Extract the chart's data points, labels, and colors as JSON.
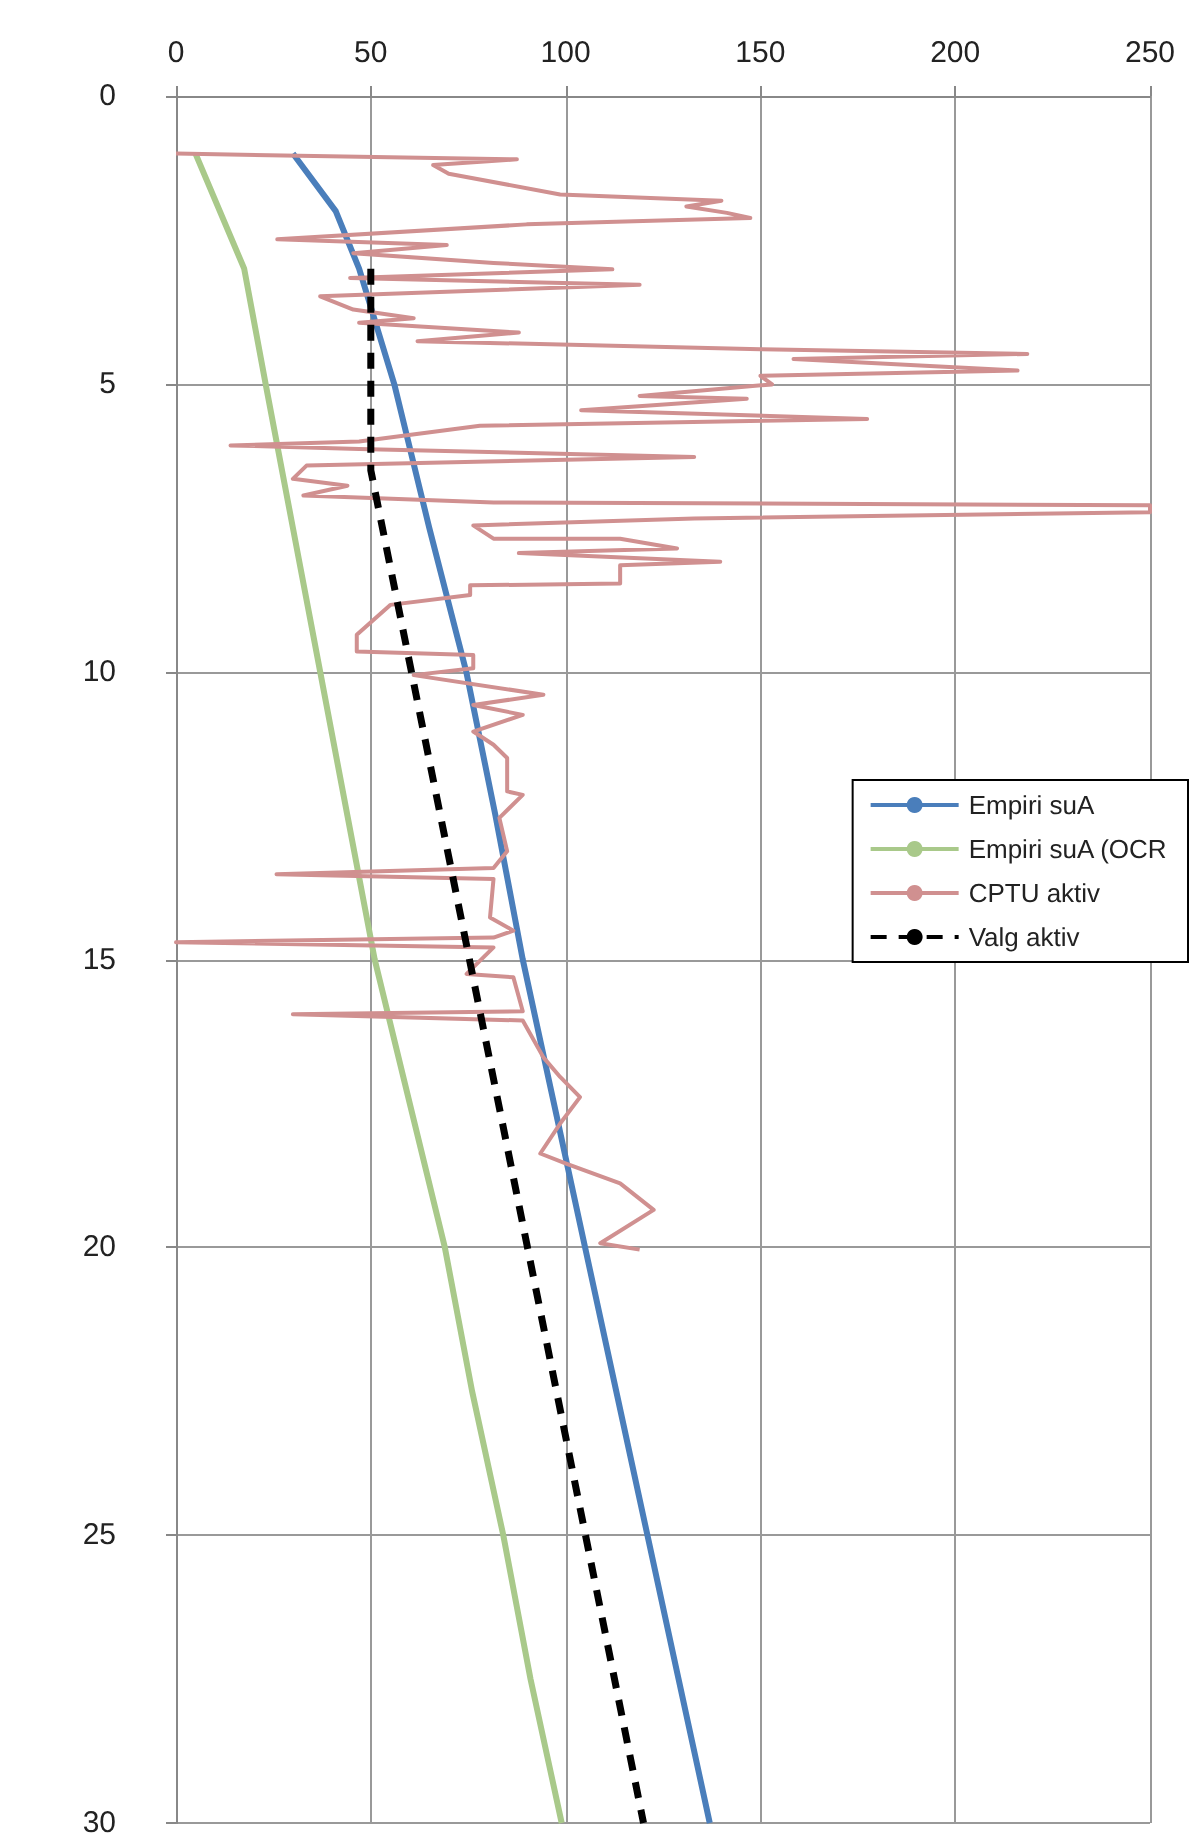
{
  "chart_data": {
    "type": "line",
    "xlim": [
      0,
      250
    ],
    "xticks": [
      0,
      50,
      100,
      150,
      200,
      250
    ],
    "ylim": [
      30,
      0
    ],
    "yticks": [
      0,
      5,
      10,
      15,
      20,
      25,
      30
    ],
    "grid": true,
    "legend": "right",
    "marker": "none",
    "series": [
      {
        "name": "Empiri suA",
        "color": "#4a7ebb",
        "x": [
          30,
          41,
          47,
          56,
          65,
          74.5,
          82,
          89,
          97,
          105,
          113,
          121,
          129,
          137
        ],
        "values": [
          1,
          2,
          3,
          5,
          7.5,
          10,
          12.5,
          15,
          17.5,
          20,
          22.5,
          25,
          27.5,
          30
        ]
      },
      {
        "name": "Empiri suA (OCR",
        "color": "#a9c98a",
        "x": [
          5,
          17.5,
          23,
          30,
          37,
          44,
          51,
          60,
          69,
          76,
          84,
          91,
          99
        ],
        "values": [
          1,
          3,
          5,
          7.5,
          10,
          12.5,
          15,
          17.5,
          20,
          22.5,
          25,
          27.5,
          30
        ]
      },
      {
        "name": "CPTU aktiv",
        "color": "#d09090",
        "x": [
          0,
          87.5,
          66,
          70,
          98.6,
          140,
          131,
          141.4,
          147.4,
          90,
          26,
          69.5,
          45.5,
          81.5,
          112,
          44.7,
          119,
          37,
          45.5,
          61,
          47,
          88,
          62,
          150,
          218.5,
          158.5,
          216,
          150,
          153,
          119,
          146.5,
          104,
          177.4,
          78,
          47,
          14,
          47,
          133,
          33.5,
          30,
          44,
          32.7,
          81.5,
          250,
          250,
          133,
          76.3,
          81.5,
          114,
          128.6,
          88,
          139.7,
          114,
          114,
          75.5,
          75.5,
          55,
          46.4,
          46.4,
          76.3,
          76.3,
          61,
          94.3,
          76.3,
          89,
          76.3,
          81.5,
          85,
          85,
          89,
          83,
          85,
          81.5,
          25.8,
          81.5,
          80.6,
          86.6,
          81.5,
          0,
          81.5,
          74.6,
          86.6,
          89,
          30,
          89,
          94.3,
          98.6,
          103.7,
          98.6,
          93.5,
          100.3,
          114,
          122.6,
          108.9,
          119
        ],
        "values": [
          1.0,
          1.1,
          1.2,
          1.35,
          1.71,
          1.82,
          1.92,
          2.03,
          2.12,
          2.23,
          2.49,
          2.59,
          2.73,
          2.9,
          3.01,
          3.16,
          3.28,
          3.48,
          3.71,
          3.86,
          3.94,
          4.11,
          4.26,
          4.4,
          4.48,
          4.57,
          4.77,
          4.86,
          5.01,
          5.21,
          5.26,
          5.46,
          5.61,
          5.73,
          6.0,
          6.07,
          6.13,
          6.27,
          6.42,
          6.65,
          6.77,
          6.94,
          7.06,
          7.11,
          7.23,
          7.34,
          7.46,
          7.69,
          7.69,
          7.86,
          7.94,
          8.09,
          8.15,
          8.47,
          8.5,
          8.67,
          8.84,
          9.36,
          9.65,
          9.71,
          9.94,
          10.06,
          10.4,
          10.58,
          10.75,
          11.04,
          11.27,
          11.5,
          12.08,
          12.14,
          12.54,
          13.12,
          13.41,
          13.52,
          13.6,
          14.27,
          14.5,
          14.62,
          14.7,
          14.79,
          15.25,
          15.31,
          15.9,
          15.95,
          16.06,
          16.7,
          17.04,
          17.39,
          17.85,
          18.37,
          18.55,
          18.89,
          19.35,
          19.93,
          20.04
        ]
      },
      {
        "name": "Valg aktiv",
        "color": "#000000",
        "line_style": "dashed",
        "x": [
          50,
          50,
          120
        ],
        "values": [
          3,
          6.5,
          30
        ]
      }
    ]
  }
}
